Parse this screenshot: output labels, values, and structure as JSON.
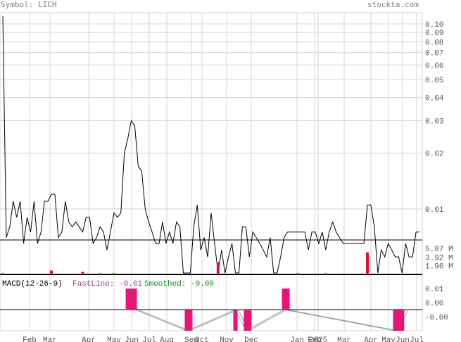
{
  "header": {
    "symbol_label": "Symbol: LICH",
    "watermark": "stockta.com"
  },
  "colors": {
    "background": "#ffffff",
    "grid": "#d4d4d4",
    "axis_text": "#555555",
    "header_text": "#808080",
    "price_line": "#000000",
    "volume_up": "#22aa22",
    "volume_down": "#dd1133",
    "macd_hist": "#ee1177",
    "fastline": "#aa33aa",
    "smoothed": "#119911"
  },
  "chart_data": [
    {
      "type": "line",
      "title": "",
      "y_scale": "log",
      "ylim": [
        0.0045,
        0.115
      ],
      "y_ticks": [
        "0.10",
        "0.09",
        "0.08",
        "0.07",
        "0.06",
        "0.05",
        "0.04",
        "0.03",
        "0.02",
        "0.01"
      ],
      "x_tick_labels": [
        "Feb",
        "Mar",
        "Apr",
        "May",
        "Jun",
        "Jul",
        "Aug",
        "Sep",
        "Oct",
        "Nov",
        "Dec",
        "Jan",
        "Feb",
        "2025",
        "Mar",
        "Apr",
        "May",
        "Jun",
        "Jul"
      ],
      "x_index_range": [
        0,
        120
      ],
      "series": [
        {
          "points": [
            [
              0,
              0.11
            ],
            [
              1,
              0.007
            ],
            [
              2,
              0.008
            ],
            [
              3,
              0.011
            ],
            [
              4,
              0.009
            ],
            [
              5,
              0.011
            ],
            [
              6,
              0.0065
            ],
            [
              7,
              0.009
            ],
            [
              8,
              0.0075
            ],
            [
              9,
              0.011
            ],
            [
              10,
              0.0065
            ],
            [
              11,
              0.0075
            ],
            [
              12,
              0.011
            ],
            [
              13,
              0.011
            ],
            [
              14,
              0.012
            ],
            [
              15,
              0.012
            ],
            [
              16,
              0.007
            ],
            [
              17,
              0.0075
            ],
            [
              18,
              0.011
            ],
            [
              19,
              0.0085
            ],
            [
              20,
              0.008
            ],
            [
              21,
              0.0085
            ],
            [
              22,
              0.008
            ],
            [
              23,
              0.0075
            ],
            [
              24,
              0.009
            ],
            [
              25,
              0.009
            ],
            [
              26,
              0.0065
            ],
            [
              27,
              0.007
            ],
            [
              28,
              0.008
            ],
            [
              29,
              0.0075
            ],
            [
              30,
              0.006
            ],
            [
              31,
              0.0075
            ],
            [
              32,
              0.0095
            ],
            [
              33,
              0.009
            ],
            [
              34,
              0.0095
            ],
            [
              35,
              0.02
            ],
            [
              36,
              0.024
            ],
            [
              37,
              0.03
            ],
            [
              38,
              0.028
            ],
            [
              39,
              0.017
            ],
            [
              40,
              0.016
            ],
            [
              41,
              0.01
            ],
            [
              42,
              0.0085
            ],
            [
              43,
              0.0075
            ],
            [
              44,
              0.0065
            ],
            [
              45,
              0.0065
            ],
            [
              46,
              0.0085
            ],
            [
              47,
              0.0065
            ],
            [
              48,
              0.0075
            ],
            [
              49,
              0.0065
            ],
            [
              50,
              0.0085
            ],
            [
              51,
              0.008
            ],
            [
              52,
              0.0045
            ],
            [
              53,
              0.0045
            ],
            [
              54,
              0.0045
            ],
            [
              55,
              0.008
            ],
            [
              56,
              0.0105
            ],
            [
              57,
              0.006
            ],
            [
              58,
              0.007
            ],
            [
              59,
              0.0055
            ],
            [
              60,
              0.0095
            ],
            [
              61,
              0.0065
            ],
            [
              62,
              0.0045
            ],
            [
              63,
              0.006
            ],
            [
              64,
              0.0045
            ],
            [
              65,
              0.0055
            ],
            [
              66,
              0.0065
            ],
            [
              67,
              0.0045
            ],
            [
              68,
              0.0045
            ],
            [
              69,
              0.008
            ],
            [
              70,
              0.008
            ],
            [
              71,
              0.0055
            ],
            [
              72,
              0.0075
            ],
            [
              73,
              0.007
            ],
            [
              74,
              0.0065
            ],
            [
              75,
              0.006
            ],
            [
              76,
              0.0055
            ],
            [
              77,
              0.007
            ],
            [
              78,
              0.0045
            ],
            [
              79,
              0.0045
            ],
            [
              80,
              0.0055
            ],
            [
              81,
              0.007
            ],
            [
              82,
              0.0075
            ],
            [
              83,
              0.0075
            ],
            [
              84,
              0.0075
            ],
            [
              85,
              0.0075
            ],
            [
              86,
              0.0075
            ],
            [
              87,
              0.0075
            ],
            [
              88,
              0.006
            ],
            [
              89,
              0.0075
            ],
            [
              90,
              0.0075
            ],
            [
              91,
              0.0065
            ],
            [
              92,
              0.0075
            ],
            [
              93,
              0.006
            ],
            [
              94,
              0.0075
            ],
            [
              95,
              0.0085
            ],
            [
              96,
              0.0075
            ],
            [
              97,
              0.007
            ],
            [
              98,
              0.0065
            ],
            [
              99,
              0.0065
            ],
            [
              100,
              0.0065
            ],
            [
              101,
              0.0065
            ],
            [
              102,
              0.0065
            ],
            [
              103,
              0.0065
            ],
            [
              104,
              0.0065
            ],
            [
              105,
              0.0105
            ],
            [
              106,
              0.0105
            ],
            [
              107,
              0.008
            ],
            [
              108,
              0.0045
            ],
            [
              109,
              0.006
            ],
            [
              110,
              0.0055
            ],
            [
              111,
              0.0065
            ],
            [
              112,
              0.006
            ],
            [
              113,
              0.0055
            ],
            [
              114,
              0.0055
            ],
            [
              115,
              0.0045
            ],
            [
              116,
              0.0065
            ],
            [
              117,
              0.0055
            ],
            [
              118,
              0.0055
            ],
            [
              119,
              0.0075
            ],
            [
              120,
              0.0075
            ]
          ]
        }
      ]
    },
    {
      "type": "bar",
      "title": "",
      "y_ticks": [
        "5.87 M",
        "3.92 M",
        "1.96 M"
      ],
      "ylim": [
        0,
        7.8
      ],
      "series": [
        {
          "color": "volume_down",
          "values": [
            [
              14,
              0.9
            ],
            [
              23,
              0.6
            ],
            [
              62,
              2.8
            ],
            [
              105,
              5.0
            ]
          ]
        },
        {
          "color": "volume_up",
          "values": [
            [
              0,
              0.3
            ],
            [
              28,
              0.3
            ],
            [
              32,
              0.3
            ],
            [
              85,
              0.3
            ],
            [
              93,
              0.3
            ]
          ]
        }
      ]
    },
    {
      "type": "area",
      "title": "",
      "legend": [
        {
          "text": "MACD(12-26-9)",
          "color": "#000000"
        },
        {
          "text": "FastLine: -0.01",
          "color": "fastline"
        },
        {
          "text": "Smoothed: -0.00",
          "color": "smoothed"
        }
      ],
      "y_ticks": [
        "0.01",
        "0.00",
        "-0.00"
      ],
      "histogram_bands": [
        {
          "from": 36,
          "to": 38,
          "sign": 1,
          "strength": 1.0
        },
        {
          "from": 53,
          "to": 54,
          "sign": -1,
          "strength": 1.0
        },
        {
          "from": 67,
          "to": 67,
          "sign": -1,
          "strength": 1.0
        },
        {
          "from": 70,
          "to": 71,
          "sign": -1,
          "strength": 1.0
        },
        {
          "from": 81,
          "to": 82,
          "sign": 1,
          "strength": 1.0
        },
        {
          "from": 113,
          "to": 115,
          "sign": -1,
          "strength": 1.0
        }
      ]
    }
  ]
}
